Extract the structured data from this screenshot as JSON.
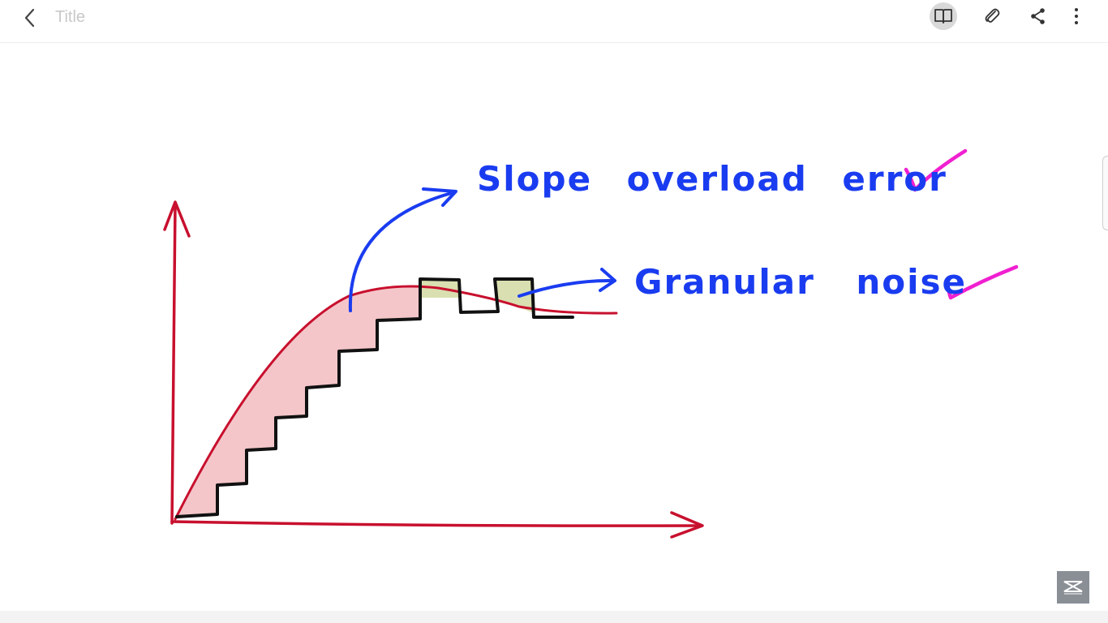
{
  "toolbar": {
    "title": "Title",
    "back_icon": "chevron-left-icon",
    "actions": [
      {
        "name": "reading-mode",
        "icon": "book-open-icon",
        "active": true
      },
      {
        "name": "attach",
        "icon": "paperclip-icon",
        "active": false
      },
      {
        "name": "share",
        "icon": "share-icon",
        "active": false
      },
      {
        "name": "more",
        "icon": "more-vertical-icon",
        "active": false
      }
    ]
  },
  "note": {
    "annotations": {
      "slope_overload": "Slope overload error",
      "granular_noise": "Granular noise"
    },
    "colors": {
      "axis": "#c8102e",
      "signal": "#c8102e",
      "staircase": "#111111",
      "error_fill": "#f4c6c9",
      "noise_fill": "#d9dfb0",
      "annotation": "#1a3cf0",
      "check": "#f020d0"
    },
    "checkmark_icon": "checkmark-icon"
  },
  "watermark": {
    "icon": "channel-logo-icon"
  }
}
